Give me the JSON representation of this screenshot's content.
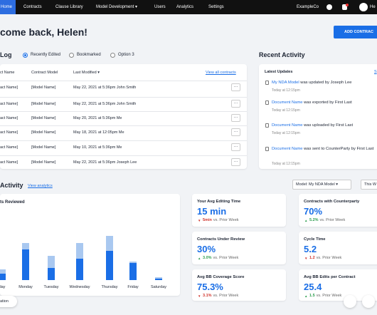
{
  "nav": {
    "items": [
      "Home",
      "Contracts",
      "Clause Library",
      "Model Development ▾",
      "Users",
      "Analytics",
      "Settings"
    ],
    "company": "ExampleCo",
    "user": "He"
  },
  "header": {
    "greeting": "come back, Helen!",
    "button": "ADD CONTRAC"
  },
  "log": {
    "title": "Log",
    "options": [
      "Recently Edited",
      "Bookmarked",
      "Option 3"
    ]
  },
  "table": {
    "columns": [
      "ct Name",
      "Contract Model",
      "Last Modified ▾"
    ],
    "link": "View all contracts",
    "rows": [
      [
        "act Name]",
        "[Model Name]",
        "May 22, 2021 at 5:36pm John Smith"
      ],
      [
        "act Name]",
        "[Model Name]",
        "May 22, 2021 at 5:36pm John Smith"
      ],
      [
        "act Name]",
        "[Model Name]",
        "May 20, 2021 at 5:36pm Me"
      ],
      [
        "act Name]",
        "[Model Name]",
        "May 18, 2021 at 12:05pm Me"
      ],
      [
        "act Name]",
        "[Model Name]",
        "May 10, 2021 at 5:36pm Me"
      ],
      [
        "act Name]",
        "[Model Name]",
        "May 22, 2021 at 5:36pm Joseph Lee"
      ]
    ],
    "more": "···"
  },
  "recent": {
    "title": "Recent Activity",
    "subtitle": "Latest Updates",
    "cut": "S",
    "items": [
      {
        "link": "My NDA Model",
        "text": " was updated by Joseph Lee",
        "time": "Today at 12:15pm"
      },
      {
        "link": "Document Name",
        "text": " was exported by First Last",
        "time": "Today at 12:15pm"
      },
      {
        "link": "Document Name",
        "text": " was uploaded by First Last",
        "time": "Today at 12:15pm"
      },
      {
        "link": "Document Name",
        "text": " was sent to CounterParty by First Last",
        "time": "Today at 12:15pm"
      }
    ]
  },
  "analytics": {
    "title": "Activity",
    "link": "View analytics",
    "dropdowns": [
      "Model: My NDA Model ▾",
      "This W"
    ],
    "chip": "ation"
  },
  "chart_data": {
    "type": "bar",
    "title": "ts Reviewed",
    "categories": [
      "day",
      "Monday",
      "Tuesday",
      "Wednesday",
      "Thursday",
      "Friday",
      "Saturday"
    ],
    "series": [
      {
        "color": "#1a6ee6",
        "values": [
          4,
          20,
          8,
          14,
          19,
          11,
          1
        ]
      },
      {
        "color": "#a9c8f0",
        "values": [
          3,
          4,
          8,
          10,
          10,
          1,
          1
        ]
      }
    ]
  },
  "stats": [
    {
      "label": "Your Avg Editing Time",
      "value": "15 min",
      "arrow": "▼",
      "delta": "5min",
      "compare": "vs. Prior Week",
      "color": "#d0342c"
    },
    {
      "label": "Contracts with Counterparty",
      "value": "70%",
      "arrow": "▲",
      "delta": "5.2%",
      "compare": "vs. Prior Week",
      "color": "#2e9e4f"
    },
    {
      "label": "Contracts Under Review",
      "value": "30%",
      "arrow": "▲",
      "delta": "3.0%",
      "compare": "vs. Prior Week",
      "color": "#2e9e4f"
    },
    {
      "label": "Cycle Time",
      "value": "5.2",
      "arrow": "▼",
      "delta": "1.2",
      "compare": "vs. Prior Week",
      "color": "#d0342c"
    },
    {
      "label": "Avg BB Coverage Score",
      "value": "75.3%",
      "arrow": "▼",
      "delta": "3.1%",
      "compare": "vs. Prior Week",
      "color": "#d0342c"
    },
    {
      "label": "Avg BB Edits per Contract",
      "value": "25.4",
      "arrow": "▲",
      "delta": "1.5",
      "compare": "vs. Prior Week",
      "color": "#2e9e4f"
    }
  ]
}
